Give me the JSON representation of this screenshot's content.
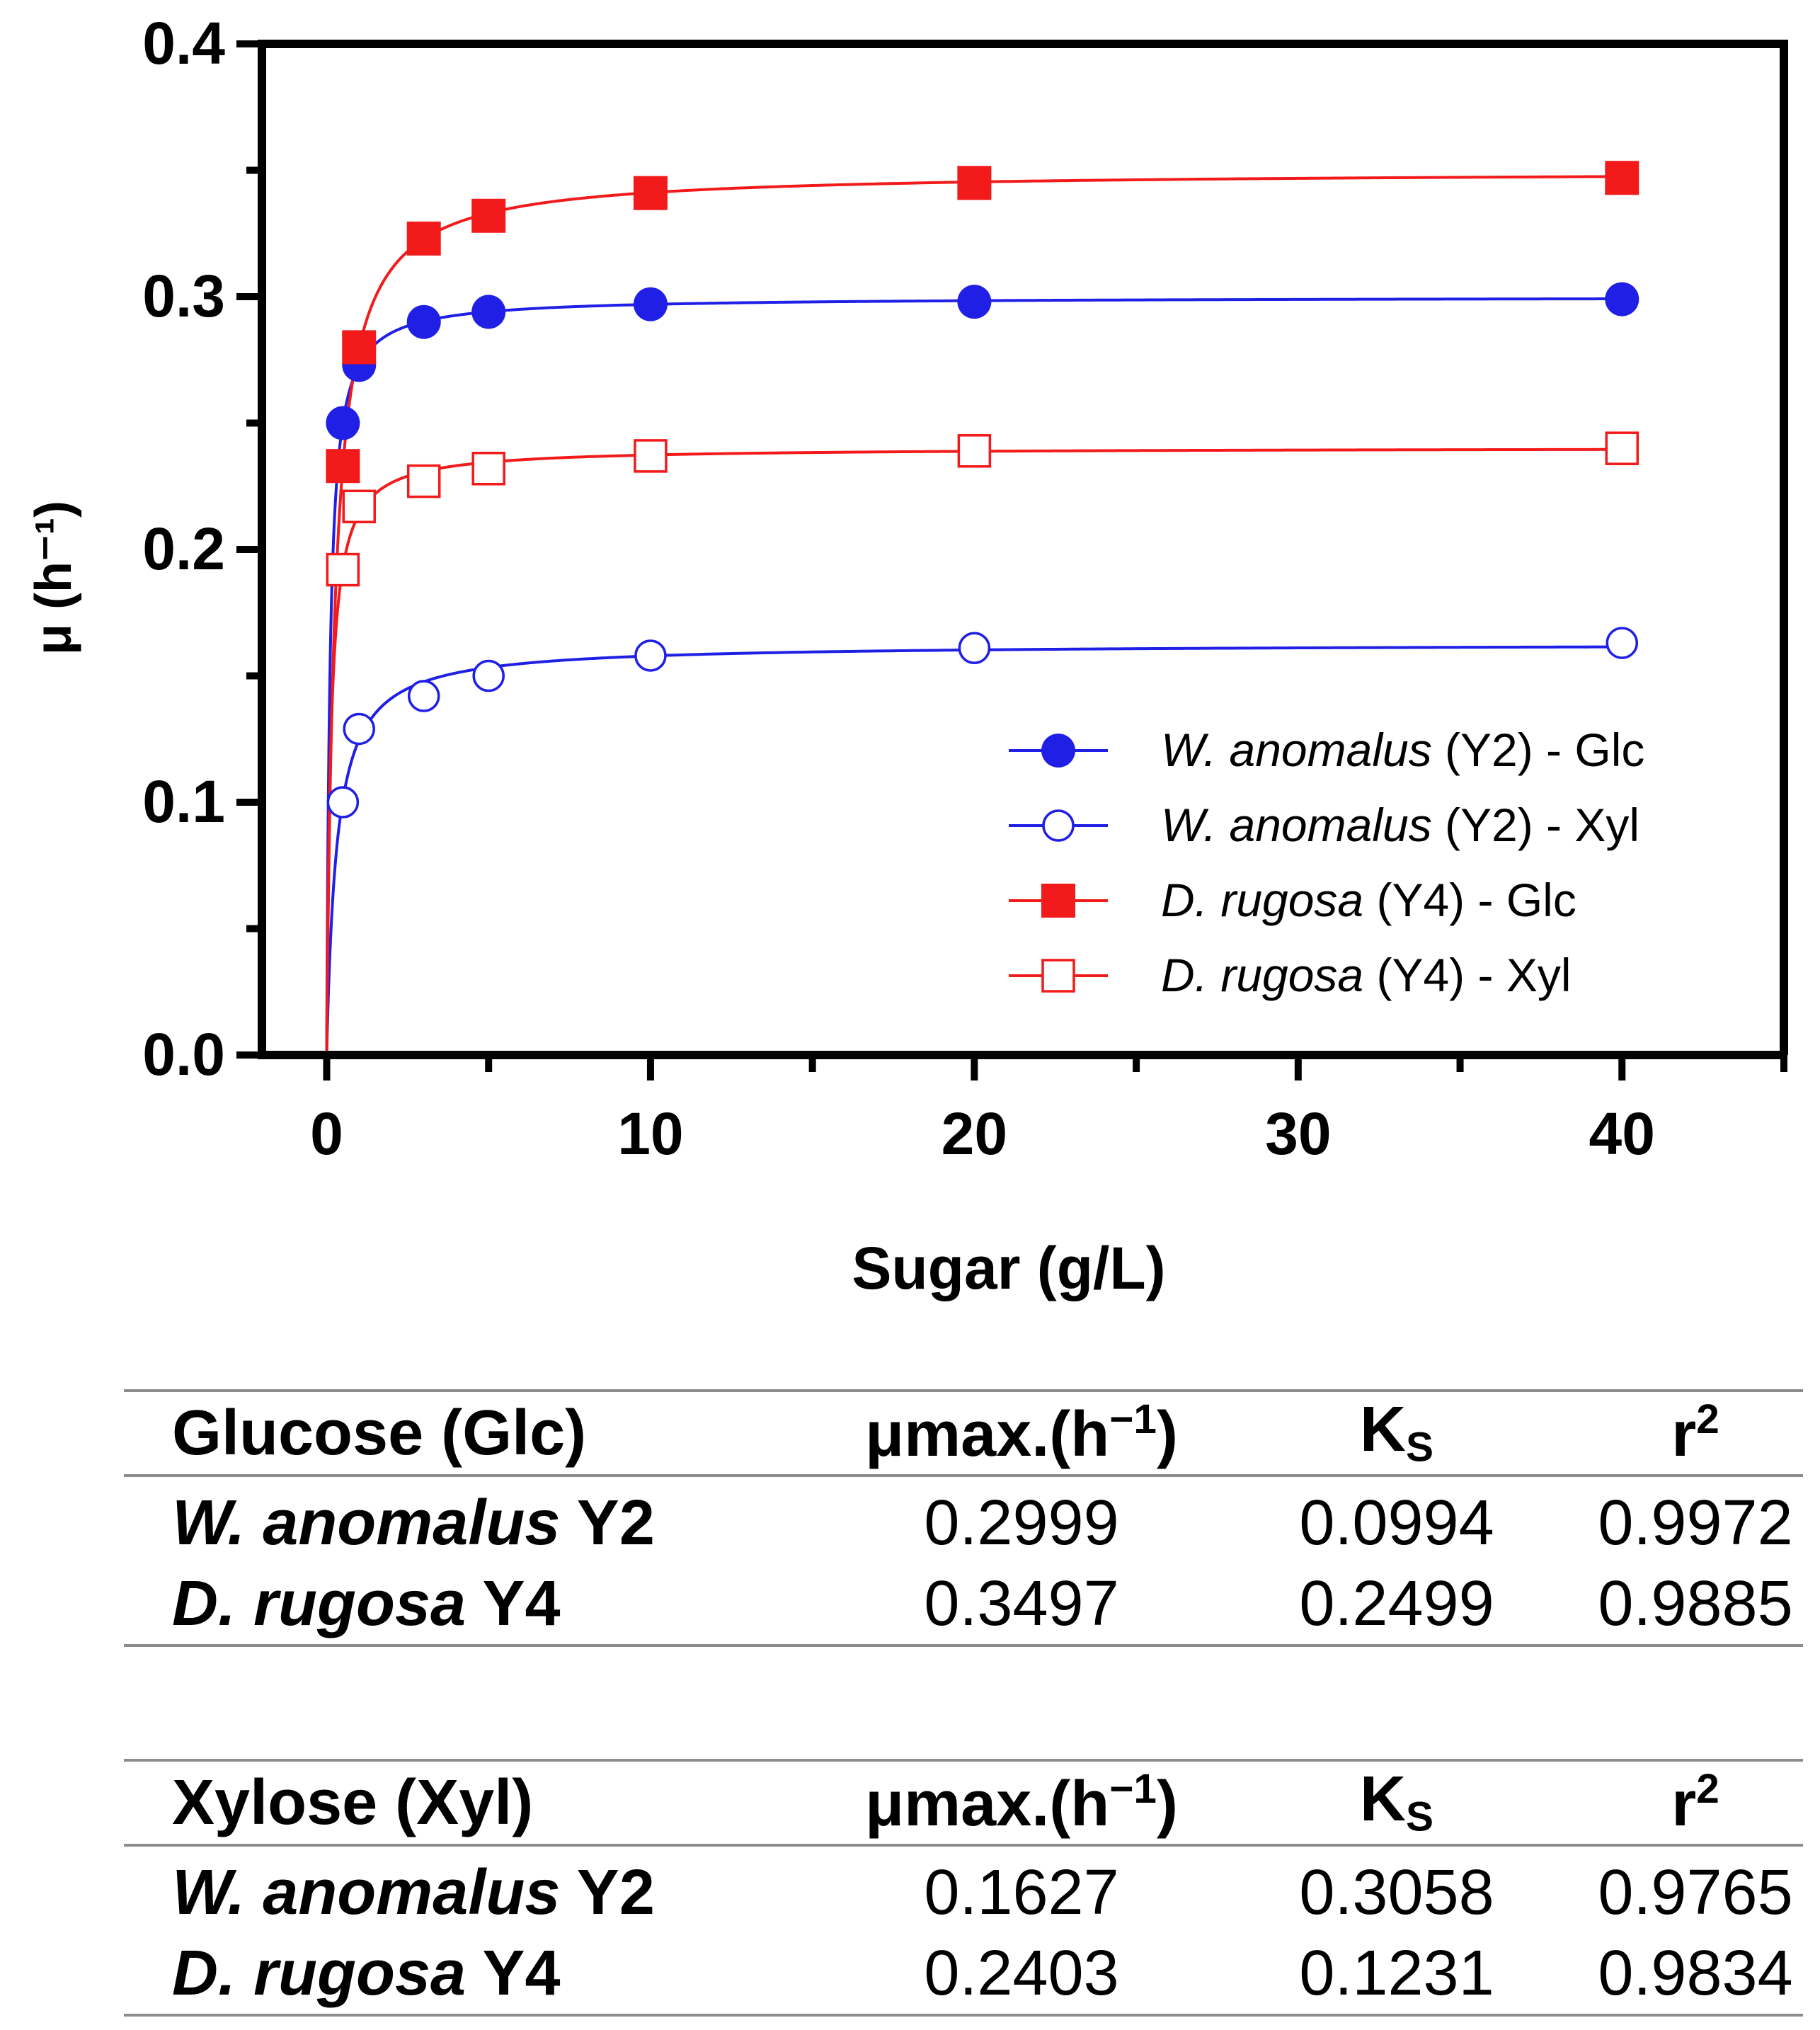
{
  "chart_data": {
    "type": "line",
    "xlabel": "Sugar (g/L)",
    "ylabel": "μ (h⁻¹)",
    "xlim": [
      -2,
      45
    ],
    "ylim": [
      0,
      0.4
    ],
    "xticks": [
      0,
      10,
      20,
      30,
      40
    ],
    "xtick_labels": [
      "0",
      "10",
      "20",
      "30",
      "40"
    ],
    "yticks": [
      0.0,
      0.1,
      0.2,
      0.3,
      0.4
    ],
    "ytick_labels": [
      "0.0",
      "0.1",
      "0.2",
      "0.3",
      "0.4"
    ],
    "legend_position": "lower-right",
    "series": [
      {
        "name": "W. anomalus (Y2) - Glc",
        "species": "W. anomalus",
        "suffix": " (Y2) - Glc",
        "marker": "circle",
        "filled": true,
        "color": "#1f1fe6",
        "x": [
          0.5,
          1,
          3,
          5,
          10,
          20,
          40
        ],
        "y": [
          0.25,
          0.273,
          0.29,
          0.294,
          0.297,
          0.298,
          0.299
        ],
        "fit": {
          "mumax": 0.2999,
          "ks": 0.0994
        }
      },
      {
        "name": "W. anomalus (Y2) - Xyl",
        "species": "W. anomalus",
        "suffix": " (Y2) - Xyl",
        "marker": "circle",
        "filled": false,
        "color": "#1f1fe6",
        "x": [
          0.5,
          1,
          3,
          5,
          10,
          20,
          40
        ],
        "y": [
          0.1,
          0.129,
          0.142,
          0.15,
          0.158,
          0.161,
          0.163
        ],
        "fit": {
          "mumax": 0.1627,
          "ks": 0.3058
        }
      },
      {
        "name": "D. rugosa (Y4) - Glc",
        "species": "D. rugosa",
        "suffix": " (Y4) - Glc",
        "marker": "square",
        "filled": true,
        "color": "#f21a1a",
        "x": [
          0.5,
          1,
          3,
          5,
          10,
          20,
          40
        ],
        "y": [
          0.233,
          0.28,
          0.323,
          0.332,
          0.341,
          0.345,
          0.347
        ],
        "fit": {
          "mumax": 0.3497,
          "ks": 0.2499
        }
      },
      {
        "name": "D. rugosa (Y4) - Xyl",
        "species": "D. rugosa",
        "suffix": " (Y4) - Xyl",
        "marker": "square",
        "filled": false,
        "color": "#f21a1a",
        "x": [
          0.5,
          1,
          3,
          5,
          10,
          20,
          40
        ],
        "y": [
          0.192,
          0.217,
          0.227,
          0.232,
          0.237,
          0.239,
          0.24
        ],
        "fit": {
          "mumax": 0.2403,
          "ks": 0.1231
        }
      }
    ]
  },
  "tables": {
    "headers": {
      "mumax": "μmax.(h",
      "mumax_sup": "−1",
      "mumax_close": ")",
      "ks_main": "K",
      "ks_sub": "S",
      "r2_main": "r",
      "r2_sup": "2"
    },
    "glucose": {
      "title": "Glucose (Glc)",
      "rows": [
        {
          "species": "W. anomalus",
          "strain": " Y2",
          "mumax": "0.2999",
          "ks": "0.0994",
          "r2": "0.9972"
        },
        {
          "species": "D. rugosa",
          "strain": " Y4",
          "mumax": "0.3497",
          "ks": "0.2499",
          "r2": "0.9885"
        }
      ]
    },
    "xylose": {
      "title": "Xylose (Xyl)",
      "rows": [
        {
          "species": "W. anomalus",
          "strain": " Y2",
          "mumax": "0.1627",
          "ks": "0.3058",
          "r2": "0.9765"
        },
        {
          "species": "D. rugosa",
          "strain": " Y4",
          "mumax": "0.2403",
          "ks": "0.1231",
          "r2": "0.9834"
        }
      ]
    }
  }
}
